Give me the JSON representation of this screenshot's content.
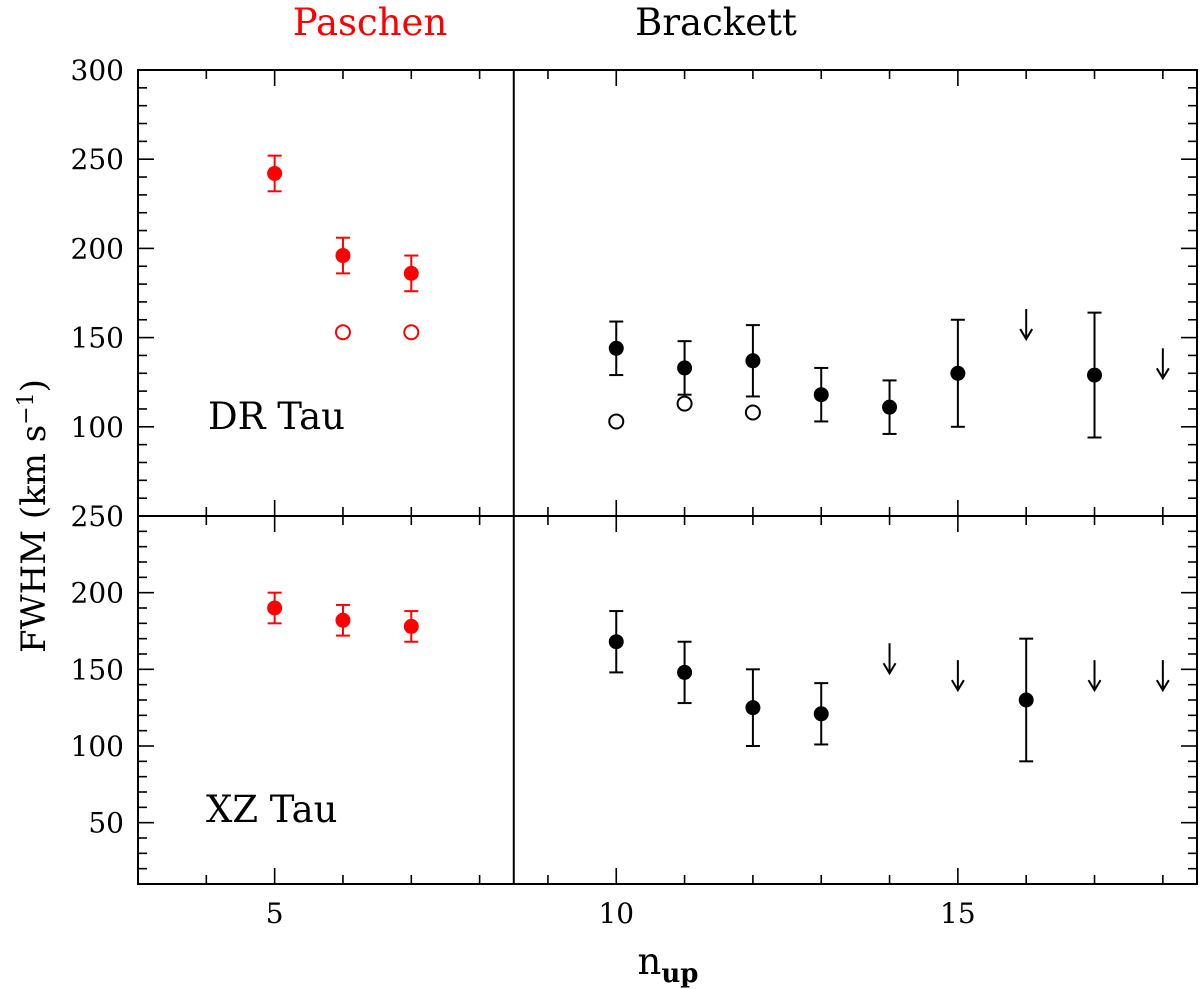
{
  "colors": {
    "paschen": "#ff0000",
    "brackett": "#000000",
    "axes": "#000000"
  },
  "chart_data": [
    {
      "id": "dr-tau",
      "type": "scatter",
      "annotation": "DR Tau",
      "ytick_labels": [
        "100",
        "150",
        "200",
        "250",
        "300"
      ],
      "ytick_values": [
        100,
        150,
        200,
        250,
        300
      ],
      "ylim": [
        50,
        300
      ],
      "xlim": [
        3,
        18.5
      ],
      "series": [
        {
          "name": "Paschen",
          "color": "#ff0000",
          "marker": "filled",
          "points": [
            {
              "x": 5,
              "y": 242,
              "err": 10
            },
            {
              "x": 6,
              "y": 196,
              "err": 10
            },
            {
              "x": 7,
              "y": 186,
              "err": 10
            }
          ]
        },
        {
          "name": "Paschen (open)",
          "color": "#ff0000",
          "marker": "open",
          "points": [
            {
              "x": 6,
              "y": 153
            },
            {
              "x": 7,
              "y": 153
            }
          ]
        },
        {
          "name": "Brackett",
          "color": "#000000",
          "marker": "filled",
          "points": [
            {
              "x": 10,
              "y": 144,
              "err": 15
            },
            {
              "x": 11,
              "y": 133,
              "err": 15
            },
            {
              "x": 12,
              "y": 137,
              "err": 20
            },
            {
              "x": 13,
              "y": 118,
              "err": 15
            },
            {
              "x": 14,
              "y": 111,
              "err": 15
            },
            {
              "x": 15,
              "y": 130,
              "err": 30
            },
            {
              "x": 17,
              "y": 129,
              "err": 35
            }
          ]
        },
        {
          "name": "Brackett (open)",
          "color": "#000000",
          "marker": "open",
          "points": [
            {
              "x": 10,
              "y": 103
            },
            {
              "x": 11,
              "y": 113
            },
            {
              "x": 12,
              "y": 108
            }
          ]
        },
        {
          "name": "Brackett upper limits",
          "color": "#000000",
          "marker": "arrow",
          "points": [
            {
              "x": 16,
              "y": 166
            },
            {
              "x": 18,
              "y": 144
            }
          ]
        }
      ]
    },
    {
      "id": "xz-tau",
      "type": "scatter",
      "annotation": "XZ Tau",
      "ytick_labels": [
        "50",
        "100",
        "150",
        "200",
        "250"
      ],
      "ytick_values": [
        50,
        100,
        150,
        200,
        250
      ],
      "ylim": [
        10,
        250
      ],
      "xlim": [
        3,
        18.5
      ],
      "series": [
        {
          "name": "Paschen",
          "color": "#ff0000",
          "marker": "filled",
          "points": [
            {
              "x": 5,
              "y": 190,
              "err": 10
            },
            {
              "x": 6,
              "y": 182,
              "err": 10
            },
            {
              "x": 7,
              "y": 178,
              "err": 10
            }
          ]
        },
        {
          "name": "Brackett",
          "color": "#000000",
          "marker": "filled",
          "points": [
            {
              "x": 10,
              "y": 168,
              "err": 20
            },
            {
              "x": 11,
              "y": 148,
              "err": 20
            },
            {
              "x": 12,
              "y": 125,
              "err": 25
            },
            {
              "x": 13,
              "y": 121,
              "err": 20
            },
            {
              "x": 16,
              "y": 130,
              "err": 40
            }
          ]
        },
        {
          "name": "Brackett upper limits",
          "color": "#000000",
          "marker": "arrow",
          "points": [
            {
              "x": 14,
              "y": 167
            },
            {
              "x": 15,
              "y": 156
            },
            {
              "x": 17,
              "y": 156
            },
            {
              "x": 18,
              "y": 156
            }
          ]
        }
      ]
    }
  ],
  "axes": {
    "xtick_labels": [
      "5",
      "10",
      "15"
    ],
    "xtick_values": [
      5,
      10,
      15
    ],
    "xlabel_main": "n",
    "xlabel_sub": "up",
    "ylabel": "FWHM (km s",
    "ylabel_sup": "−1",
    "ylabel_close": ")",
    "separator_x": 8.5
  },
  "top_labels": {
    "paschen": "Paschen",
    "brackett": "Brackett"
  }
}
